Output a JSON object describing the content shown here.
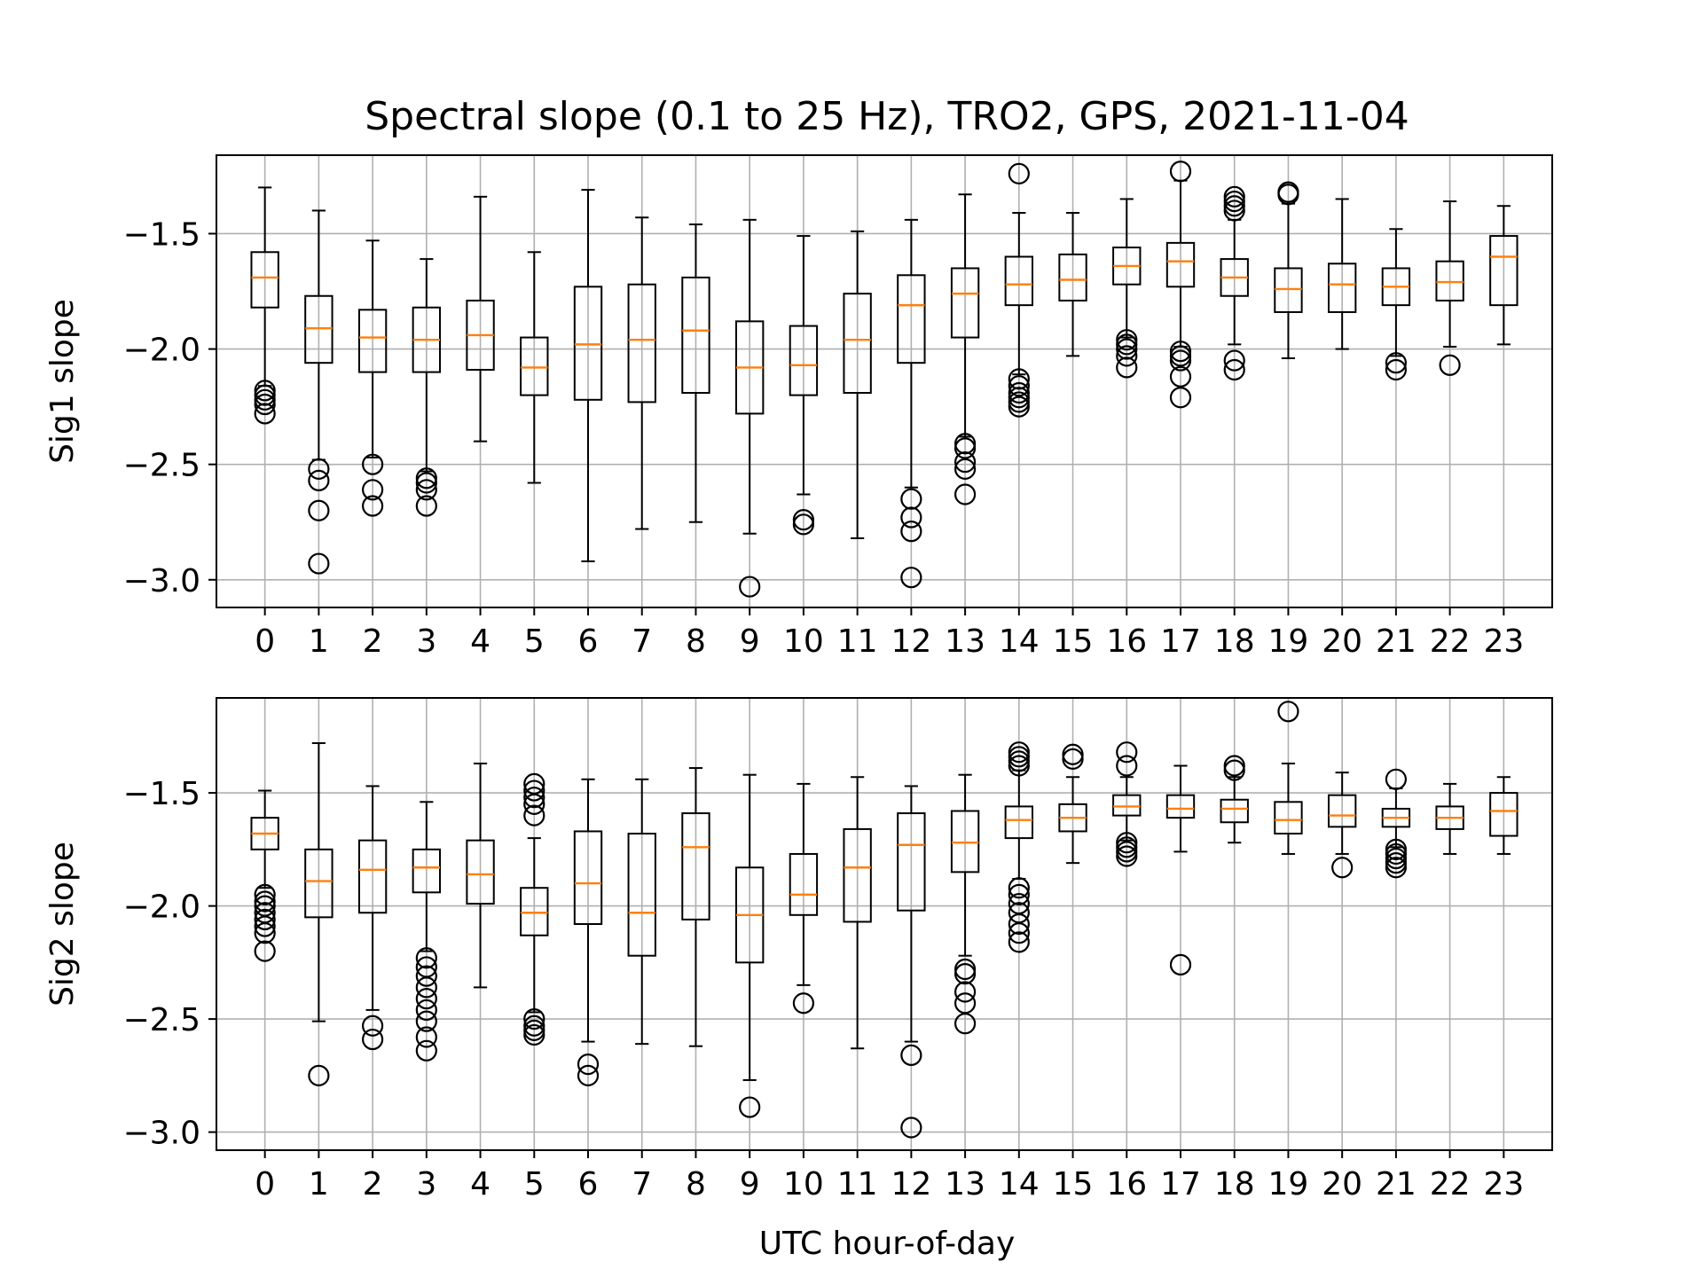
{
  "figure": {
    "title": "Spectral slope (0.1 to 25 Hz), TRO2, GPS, 2021-11-04",
    "xlabel": "UTC hour-of-day"
  },
  "colors": {
    "box": "#000000",
    "median": "#ff7f0e",
    "grid": "#b0b0b0",
    "background": "#ffffff"
  },
  "chart_data": [
    {
      "type": "box",
      "ylabel": "Sig1 slope",
      "xlabel": "",
      "ylim": [
        -3.12,
        -1.16
      ],
      "yticks": [
        -3.0,
        -2.5,
        -2.0,
        -1.5
      ],
      "ytick_labels": [
        "−3.0",
        "−2.5",
        "−2.0",
        "−1.5"
      ],
      "grid": true,
      "categories": [
        "0",
        "1",
        "2",
        "3",
        "4",
        "5",
        "6",
        "7",
        "8",
        "9",
        "10",
        "11",
        "12",
        "13",
        "14",
        "15",
        "16",
        "17",
        "18",
        "19",
        "20",
        "21",
        "22",
        "23"
      ],
      "boxes": [
        {
          "whislo": -2.16,
          "q1": -1.82,
          "med": -1.69,
          "q3": -1.58,
          "whishi": -1.3,
          "fliers": [
            -2.18,
            -2.2,
            -2.22,
            -2.24,
            -2.28
          ]
        },
        {
          "whislo": -2.48,
          "q1": -2.06,
          "med": -1.91,
          "q3": -1.77,
          "whishi": -1.4,
          "fliers": [
            -2.52,
            -2.57,
            -2.7,
            -2.93
          ]
        },
        {
          "whislo": -2.47,
          "q1": -2.1,
          "med": -1.95,
          "q3": -1.83,
          "whishi": -1.53,
          "fliers": [
            -2.5,
            -2.61,
            -2.68
          ]
        },
        {
          "whislo": -2.53,
          "q1": -2.1,
          "med": -1.96,
          "q3": -1.82,
          "whishi": -1.61,
          "fliers": [
            -2.56,
            -2.58,
            -2.61,
            -2.68
          ]
        },
        {
          "whislo": -2.4,
          "q1": -2.09,
          "med": -1.94,
          "q3": -1.79,
          "whishi": -1.34,
          "fliers": []
        },
        {
          "whislo": -2.58,
          "q1": -2.2,
          "med": -2.08,
          "q3": -1.95,
          "whishi": -1.58,
          "fliers": []
        },
        {
          "whislo": -2.92,
          "q1": -2.22,
          "med": -1.98,
          "q3": -1.73,
          "whishi": -1.31,
          "fliers": []
        },
        {
          "whislo": -2.78,
          "q1": -2.23,
          "med": -1.96,
          "q3": -1.72,
          "whishi": -1.43,
          "fliers": []
        },
        {
          "whislo": -2.75,
          "q1": -2.19,
          "med": -1.92,
          "q3": -1.69,
          "whishi": -1.46,
          "fliers": []
        },
        {
          "whislo": -2.8,
          "q1": -2.28,
          "med": -2.08,
          "q3": -1.88,
          "whishi": -1.44,
          "fliers": [
            -3.03
          ]
        },
        {
          "whislo": -2.63,
          "q1": -2.2,
          "med": -2.07,
          "q3": -1.9,
          "whishi": -1.51,
          "fliers": [
            -2.74,
            -2.76
          ]
        },
        {
          "whislo": -2.82,
          "q1": -2.19,
          "med": -1.96,
          "q3": -1.76,
          "whishi": -1.49,
          "fliers": []
        },
        {
          "whislo": -2.6,
          "q1": -2.06,
          "med": -1.81,
          "q3": -1.68,
          "whishi": -1.44,
          "fliers": [
            -2.65,
            -2.73,
            -2.79,
            -2.99
          ]
        },
        {
          "whislo": -2.38,
          "q1": -1.95,
          "med": -1.76,
          "q3": -1.65,
          "whishi": -1.33,
          "fliers": [
            -2.41,
            -2.43,
            -2.49,
            -2.52,
            -2.63
          ]
        },
        {
          "whislo": -2.11,
          "q1": -1.81,
          "med": -1.72,
          "q3": -1.6,
          "whishi": -1.41,
          "fliers": [
            -1.24,
            -2.13,
            -2.16,
            -2.19,
            -2.21,
            -2.23,
            -2.25
          ]
        },
        {
          "whislo": -2.03,
          "q1": -1.79,
          "med": -1.7,
          "q3": -1.59,
          "whishi": -1.41,
          "fliers": []
        },
        {
          "whislo": -1.95,
          "q1": -1.72,
          "med": -1.64,
          "q3": -1.56,
          "whishi": -1.35,
          "fliers": [
            -1.96,
            -1.98,
            -2.0,
            -2.03,
            -2.08
          ]
        },
        {
          "whislo": -1.99,
          "q1": -1.73,
          "med": -1.62,
          "q3": -1.54,
          "whishi": -1.27,
          "fliers": [
            -1.23,
            -2.01,
            -2.03,
            -2.05,
            -2.12,
            -2.21
          ]
        },
        {
          "whislo": -1.98,
          "q1": -1.77,
          "med": -1.69,
          "q3": -1.61,
          "whishi": -1.44,
          "fliers": [
            -1.34,
            -1.36,
            -1.38,
            -1.4,
            -2.05,
            -2.09
          ]
        },
        {
          "whislo": -2.04,
          "q1": -1.84,
          "med": -1.74,
          "q3": -1.65,
          "whishi": -1.37,
          "fliers": [
            -1.32,
            -1.33
          ]
        },
        {
          "whislo": -2.0,
          "q1": -1.84,
          "med": -1.72,
          "q3": -1.63,
          "whishi": -1.35,
          "fliers": []
        },
        {
          "whislo": -2.03,
          "q1": -1.81,
          "med": -1.73,
          "q3": -1.65,
          "whishi": -1.48,
          "fliers": [
            -2.06,
            -2.09
          ]
        },
        {
          "whislo": -1.99,
          "q1": -1.79,
          "med": -1.71,
          "q3": -1.62,
          "whishi": -1.36,
          "fliers": [
            -2.07
          ]
        },
        {
          "whislo": -1.98,
          "q1": -1.81,
          "med": -1.6,
          "q3": -1.51,
          "whishi": -1.38,
          "fliers": []
        }
      ]
    },
    {
      "type": "box",
      "ylabel": "Sig2 slope",
      "xlabel": "UTC hour-of-day",
      "ylim": [
        -3.08,
        -1.08
      ],
      "yticks": [
        -3.0,
        -2.5,
        -2.0,
        -1.5
      ],
      "ytick_labels": [
        "−3.0",
        "−2.5",
        "−2.0",
        "−1.5"
      ],
      "grid": true,
      "categories": [
        "0",
        "1",
        "2",
        "3",
        "4",
        "5",
        "6",
        "7",
        "8",
        "9",
        "10",
        "11",
        "12",
        "13",
        "14",
        "15",
        "16",
        "17",
        "18",
        "19",
        "20",
        "21",
        "22",
        "23"
      ],
      "boxes": [
        {
          "whislo": -1.92,
          "q1": -1.75,
          "med": -1.68,
          "q3": -1.61,
          "whishi": -1.49,
          "fliers": [
            -1.95,
            -1.98,
            -2.0,
            -2.03,
            -2.06,
            -2.09,
            -2.12,
            -2.2
          ]
        },
        {
          "whislo": -2.51,
          "q1": -2.05,
          "med": -1.89,
          "q3": -1.75,
          "whishi": -1.28,
          "fliers": [
            -2.75
          ]
        },
        {
          "whislo": -2.46,
          "q1": -2.03,
          "med": -1.84,
          "q3": -1.71,
          "whishi": -1.47,
          "fliers": [
            -2.53,
            -2.59
          ]
        },
        {
          "whislo": -2.2,
          "q1": -1.94,
          "med": -1.83,
          "q3": -1.75,
          "whishi": -1.54,
          "fliers": [
            -2.23,
            -2.27,
            -2.31,
            -2.36,
            -2.41,
            -2.46,
            -2.51,
            -2.58,
            -2.64
          ]
        },
        {
          "whislo": -2.36,
          "q1": -1.99,
          "med": -1.86,
          "q3": -1.71,
          "whishi": -1.37,
          "fliers": []
        },
        {
          "whislo": -2.47,
          "q1": -2.13,
          "med": -2.03,
          "q3": -1.92,
          "whishi": -1.7,
          "fliers": [
            -1.46,
            -1.49,
            -1.52,
            -1.55,
            -1.6,
            -2.5,
            -2.53,
            -2.55,
            -2.57
          ]
        },
        {
          "whislo": -2.6,
          "q1": -2.08,
          "med": -1.9,
          "q3": -1.67,
          "whishi": -1.44,
          "fliers": [
            -2.7,
            -2.75
          ]
        },
        {
          "whislo": -2.61,
          "q1": -2.22,
          "med": -2.03,
          "q3": -1.68,
          "whishi": -1.44,
          "fliers": []
        },
        {
          "whislo": -2.62,
          "q1": -2.06,
          "med": -1.74,
          "q3": -1.59,
          "whishi": -1.39,
          "fliers": []
        },
        {
          "whislo": -2.77,
          "q1": -2.25,
          "med": -2.04,
          "q3": -1.83,
          "whishi": -1.42,
          "fliers": [
            -2.89
          ]
        },
        {
          "whislo": -2.35,
          "q1": -2.04,
          "med": -1.95,
          "q3": -1.77,
          "whishi": -1.46,
          "fliers": [
            -2.43
          ]
        },
        {
          "whislo": -2.63,
          "q1": -2.07,
          "med": -1.83,
          "q3": -1.66,
          "whishi": -1.43,
          "fliers": []
        },
        {
          "whislo": -2.6,
          "q1": -2.02,
          "med": -1.73,
          "q3": -1.59,
          "whishi": -1.47,
          "fliers": [
            -2.66,
            -2.98
          ]
        },
        {
          "whislo": -2.22,
          "q1": -1.85,
          "med": -1.72,
          "q3": -1.58,
          "whishi": -1.42,
          "fliers": [
            -2.28,
            -2.3,
            -2.38,
            -2.43,
            -2.52
          ]
        },
        {
          "whislo": -1.88,
          "q1": -1.7,
          "med": -1.62,
          "q3": -1.56,
          "whishi": -1.4,
          "fliers": [
            -1.32,
            -1.34,
            -1.36,
            -1.38,
            -1.92,
            -1.95,
            -1.99,
            -2.03,
            -2.08,
            -2.12,
            -2.16
          ]
        },
        {
          "whislo": -1.81,
          "q1": -1.67,
          "med": -1.61,
          "q3": -1.55,
          "whishi": -1.43,
          "fliers": [
            -1.33,
            -1.35
          ]
        },
        {
          "whislo": -1.71,
          "q1": -1.6,
          "med": -1.56,
          "q3": -1.51,
          "whishi": -1.43,
          "fliers": [
            -1.32,
            -1.38,
            -1.72,
            -1.74,
            -1.76,
            -1.78
          ]
        },
        {
          "whislo": -1.76,
          "q1": -1.61,
          "med": -1.57,
          "q3": -1.51,
          "whishi": -1.38,
          "fliers": [
            -2.26
          ]
        },
        {
          "whislo": -1.72,
          "q1": -1.63,
          "med": -1.57,
          "q3": -1.53,
          "whishi": -1.43,
          "fliers": [
            -1.38,
            -1.4
          ]
        },
        {
          "whislo": -1.77,
          "q1": -1.68,
          "med": -1.62,
          "q3": -1.54,
          "whishi": -1.37,
          "fliers": [
            -1.14
          ]
        },
        {
          "whislo": -1.77,
          "q1": -1.65,
          "med": -1.6,
          "q3": -1.51,
          "whishi": -1.41,
          "fliers": [
            -1.83
          ]
        },
        {
          "whislo": -1.74,
          "q1": -1.65,
          "med": -1.61,
          "q3": -1.57,
          "whishi": -1.48,
          "fliers": [
            -1.44,
            -1.75,
            -1.77,
            -1.79,
            -1.81,
            -1.83
          ]
        },
        {
          "whislo": -1.77,
          "q1": -1.66,
          "med": -1.61,
          "q3": -1.56,
          "whishi": -1.46,
          "fliers": []
        },
        {
          "whislo": -1.77,
          "q1": -1.69,
          "med": -1.58,
          "q3": -1.5,
          "whishi": -1.43,
          "fliers": []
        }
      ]
    }
  ]
}
